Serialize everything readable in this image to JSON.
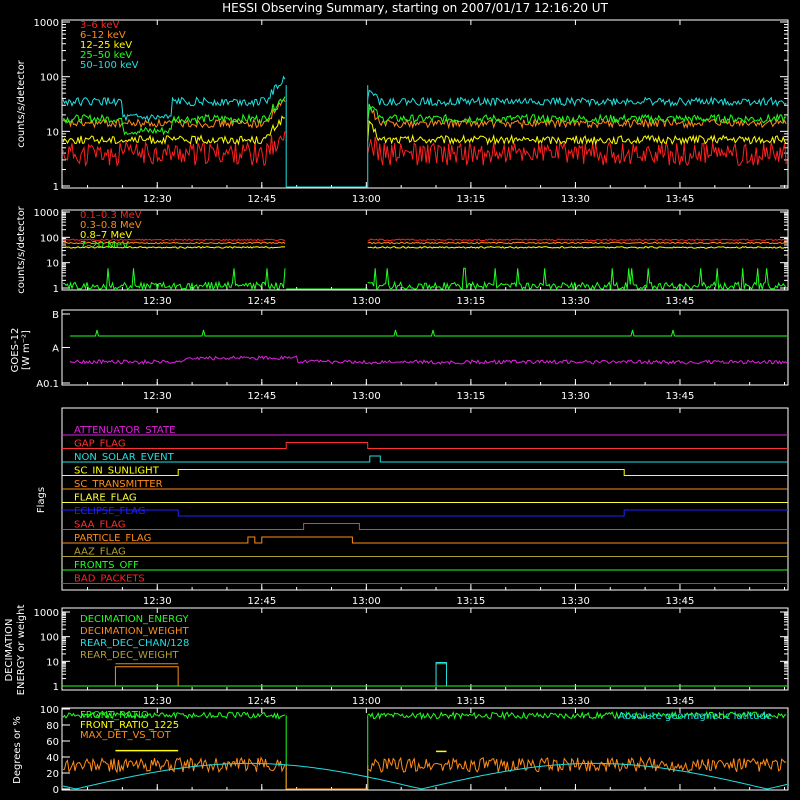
{
  "title": "HESSI Observing Summary, starting on 2007/01/17 12:16:20 UT",
  "time_ticks": [
    "12:30",
    "12:45",
    "13:00",
    "13:15",
    "13:30",
    "13:45"
  ],
  "panels": {
    "count_rates": {
      "ylabel": "counts/s/detector",
      "yticks": [
        "1",
        "10",
        "100",
        "1000"
      ],
      "series": [
        {
          "name": "3–6 keV",
          "color": "#ff2020",
          "level": 4
        },
        {
          "name": "6–12 keV",
          "color": "#ff8c1a",
          "level": 14
        },
        {
          "name": "12–25 keV",
          "color": "#ffff00",
          "level": 7
        },
        {
          "name": "25–50 keV",
          "color": "#20ff20",
          "level": 17
        },
        {
          "name": "50–100 keV",
          "color": "#20e0e0",
          "level": 35
        }
      ]
    },
    "high_energy": {
      "ylabel": "counts/s/detector",
      "yticks": [
        "1",
        "10",
        "100",
        "1000"
      ],
      "series": [
        {
          "name": "0.1–0.3 MeV",
          "color": "#ff2020",
          "level": 80
        },
        {
          "name": "0.3–0.8 MeV",
          "color": "#ff8c1a",
          "level": 60
        },
        {
          "name": "0.8–7 MeV",
          "color": "#ffff00",
          "level": 40
        },
        {
          "name": "7–20 MeV",
          "color": "#20ff20",
          "level": 1.2
        }
      ]
    },
    "goes": {
      "ylabel_line1": "GOES-12",
      "ylabel_line2": "[W m⁻²]",
      "yticks": [
        "A0.1",
        "A",
        "B"
      ]
    },
    "flags": {
      "ylabel": "Flags",
      "items": [
        {
          "name": "ATTENUATOR_STATE",
          "color": "#e020e0"
        },
        {
          "name": "GAP_FLAG",
          "color": "#ff3030"
        },
        {
          "name": "NON_SOLAR_EVENT",
          "color": "#20e0e0"
        },
        {
          "name": "SC_IN_SUNLIGHT",
          "color": "#ffff00"
        },
        {
          "name": "SC_TRANSMITTER",
          "color": "#ff8c1a"
        },
        {
          "name": "FLARE_FLAG",
          "color": "#ffff40"
        },
        {
          "name": "ECLIPSE_FLAG",
          "color": "#2020ff"
        },
        {
          "name": "SAA_FLAG",
          "color": "#ff3030"
        },
        {
          "name": "PARTICLE_FLAG",
          "color": "#ff8c1a"
        },
        {
          "name": "AAZ_FLAG",
          "color": "#b0a030"
        },
        {
          "name": "FRONTS_OFF",
          "color": "#20ff20"
        },
        {
          "name": "BAD_PACKETS",
          "color": "#ff2020"
        }
      ]
    },
    "decimation": {
      "ylabel_line1": "DECIMATION",
      "ylabel_line2": "ENERGY or weight",
      "yticks": [
        "1",
        "10",
        "100",
        "1000"
      ],
      "series": [
        {
          "name": "DECIMATION_ENERGY",
          "color": "#20ff20"
        },
        {
          "name": "DECIMATION_WEIGHT",
          "color": "#ff8c1a"
        },
        {
          "name": "REAR_DEC_CHAN/128",
          "color": "#20e0e0"
        },
        {
          "name": "REAR_DEC_WEIGHT",
          "color": "#b0a030"
        }
      ]
    },
    "ratios": {
      "ylabel": "Degrees or %",
      "yticks": [
        "0",
        "20",
        "40",
        "60",
        "80",
        "100"
      ],
      "annotation": "Absolute geomagnetic latitude",
      "annotation_color": "#20e0e0",
      "series": [
        {
          "name": "FRONT_RATIO",
          "color": "#20ff20",
          "level": 92
        },
        {
          "name": "FRONT_RATIO_1225",
          "color": "#ffff00",
          "level": 50
        },
        {
          "name": "MAX_DET_VS_TOT",
          "color": "#ff8c1a",
          "level": 30
        }
      ]
    }
  },
  "chart_data": {
    "type": "line",
    "title": "HESSI Observing Summary, starting on 2007/01/17 12:16:20 UT",
    "x_range": [
      "12:16:20",
      "14:00"
    ],
    "x_ticks": [
      "12:30",
      "12:45",
      "13:00",
      "13:15",
      "13:30",
      "13:45"
    ],
    "data_gap": [
      "12:48",
      "13:00"
    ],
    "panels": [
      {
        "name": "count_rates",
        "ylabel": "counts/s/detector",
        "yscale": "log",
        "ylim": [
          1,
          1000
        ],
        "series": [
          {
            "name": "3–6 keV",
            "typical_value": 4
          },
          {
            "name": "6–12 keV",
            "typical_value": 14
          },
          {
            "name": "12–25 keV",
            "typical_value": 7
          },
          {
            "name": "25–50 keV",
            "typical_value": 17
          },
          {
            "name": "50–100 keV",
            "typical_value": 35
          }
        ]
      },
      {
        "name": "high_energy",
        "ylabel": "counts/s/detector",
        "yscale": "log",
        "ylim": [
          1,
          1000
        ],
        "series": [
          {
            "name": "0.1–0.3 MeV",
            "typical_value": 80
          },
          {
            "name": "0.3–0.8 MeV",
            "typical_value": 60
          },
          {
            "name": "0.8–7 MeV",
            "typical_value": 40
          },
          {
            "name": "7–20 MeV",
            "typical_value": 1.2
          }
        ]
      },
      {
        "name": "ratios",
        "ylabel": "Degrees or %",
        "ylim": [
          0,
          100
        ],
        "series": [
          {
            "name": "FRONT_RATIO",
            "typical_value": 92
          },
          {
            "name": "FRONT_RATIO_1225",
            "typical_value": 50
          },
          {
            "name": "MAX_DET_VS_TOT",
            "typical_value": 30
          }
        ]
      }
    ]
  }
}
